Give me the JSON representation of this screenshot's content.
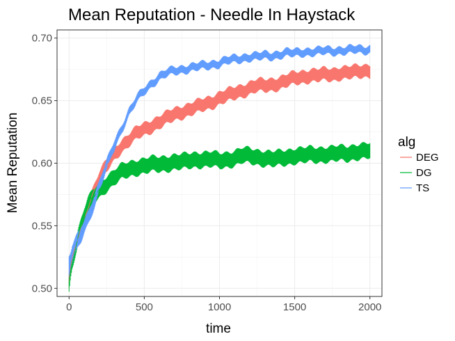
{
  "chart_data": {
    "type": "line",
    "title": "Mean Reputation - Needle In Haystack",
    "xlabel": "time",
    "ylabel": "Mean Reputation",
    "xlim": [
      -80,
      2080
    ],
    "ylim": [
      0.4935,
      0.7065
    ],
    "xticks": [
      0,
      500,
      1000,
      1500,
      2000
    ],
    "xtick_labels": [
      "0",
      "500",
      "1000",
      "1500",
      "2000"
    ],
    "yticks": [
      0.5,
      0.55,
      0.6,
      0.65,
      0.7
    ],
    "ytick_labels": [
      "0.50",
      "0.55",
      "0.60",
      "0.65",
      "0.70"
    ],
    "grid": true,
    "error_bars": true,
    "legend": {
      "title": "alg",
      "position": "right"
    },
    "x": [
      0,
      10,
      20,
      40,
      60,
      80,
      100,
      125,
      150,
      175,
      200,
      250,
      300,
      350,
      400,
      450,
      500,
      550,
      600,
      650,
      700,
      750,
      800,
      850,
      900,
      950,
      1000,
      1050,
      1100,
      1150,
      1200,
      1250,
      1300,
      1350,
      1400,
      1450,
      1500,
      1550,
      1600,
      1650,
      1700,
      1750,
      1800,
      1850,
      1900,
      1950,
      2000
    ],
    "series": [
      {
        "name": "DEG",
        "color": "#F8766D",
        "values": [
          0.506,
          0.515,
          0.523,
          0.532,
          0.54,
          0.548,
          0.556,
          0.565,
          0.573,
          0.581,
          0.588,
          0.598,
          0.607,
          0.614,
          0.619,
          0.624,
          0.627,
          0.63,
          0.633,
          0.636,
          0.639,
          0.641,
          0.643,
          0.645,
          0.647,
          0.649,
          0.652,
          0.654,
          0.656,
          0.658,
          0.66,
          0.662,
          0.662,
          0.663,
          0.664,
          0.666,
          0.668,
          0.669,
          0.67,
          0.67,
          0.671,
          0.671,
          0.672,
          0.672,
          0.673,
          0.674,
          0.674
        ],
        "error": [
          0.006,
          0.006,
          0.006,
          0.006,
          0.005,
          0.005,
          0.005,
          0.005,
          0.005,
          0.005,
          0.005,
          0.005,
          0.005,
          0.005,
          0.005,
          0.005,
          0.005,
          0.005,
          0.005,
          0.005,
          0.005,
          0.005,
          0.005,
          0.005,
          0.005,
          0.005,
          0.005,
          0.005,
          0.005,
          0.005,
          0.005,
          0.005,
          0.005,
          0.005,
          0.005,
          0.005,
          0.005,
          0.005,
          0.005,
          0.005,
          0.005,
          0.005,
          0.005,
          0.005,
          0.005,
          0.005,
          0.005
        ]
      },
      {
        "name": "DG",
        "color": "#00BA38",
        "values": [
          0.502,
          0.514,
          0.522,
          0.532,
          0.541,
          0.55,
          0.558,
          0.566,
          0.571,
          0.575,
          0.578,
          0.584,
          0.589,
          0.593,
          0.595,
          0.597,
          0.598,
          0.599,
          0.599,
          0.6,
          0.601,
          0.601,
          0.602,
          0.603,
          0.603,
          0.603,
          0.602,
          0.603,
          0.604,
          0.606,
          0.606,
          0.605,
          0.604,
          0.603,
          0.604,
          0.605,
          0.606,
          0.606,
          0.607,
          0.607,
          0.607,
          0.607,
          0.608,
          0.608,
          0.609,
          0.609,
          0.61
        ],
        "error": [
          0.006,
          0.006,
          0.006,
          0.006,
          0.006,
          0.006,
          0.006,
          0.006,
          0.006,
          0.006,
          0.006,
          0.006,
          0.006,
          0.006,
          0.006,
          0.006,
          0.006,
          0.006,
          0.006,
          0.006,
          0.006,
          0.006,
          0.006,
          0.006,
          0.006,
          0.006,
          0.006,
          0.006,
          0.006,
          0.006,
          0.006,
          0.006,
          0.006,
          0.006,
          0.006,
          0.006,
          0.006,
          0.006,
          0.006,
          0.006,
          0.006,
          0.006,
          0.006,
          0.006,
          0.006,
          0.006,
          0.006
        ]
      },
      {
        "name": "TS",
        "color": "#619CFF",
        "values": [
          0.518,
          0.522,
          0.527,
          0.533,
          0.538,
          0.543,
          0.549,
          0.556,
          0.564,
          0.572,
          0.582,
          0.598,
          0.614,
          0.628,
          0.641,
          0.651,
          0.658,
          0.664,
          0.669,
          0.672,
          0.674,
          0.675,
          0.676,
          0.677,
          0.678,
          0.679,
          0.68,
          0.682,
          0.683,
          0.684,
          0.685,
          0.685,
          0.686,
          0.686,
          0.687,
          0.688,
          0.688,
          0.689,
          0.689,
          0.689,
          0.69,
          0.69,
          0.69,
          0.69,
          0.691,
          0.691,
          0.691
        ],
        "error": [
          0.008,
          0.007,
          0.007,
          0.006,
          0.006,
          0.006,
          0.005,
          0.005,
          0.005,
          0.005,
          0.004,
          0.004,
          0.004,
          0.003,
          0.003,
          0.003,
          0.003,
          0.003,
          0.003,
          0.003,
          0.003,
          0.003,
          0.003,
          0.003,
          0.003,
          0.003,
          0.003,
          0.003,
          0.003,
          0.003,
          0.003,
          0.003,
          0.003,
          0.003,
          0.003,
          0.003,
          0.003,
          0.003,
          0.003,
          0.003,
          0.003,
          0.003,
          0.003,
          0.003,
          0.003,
          0.003,
          0.003
        ]
      }
    ]
  }
}
